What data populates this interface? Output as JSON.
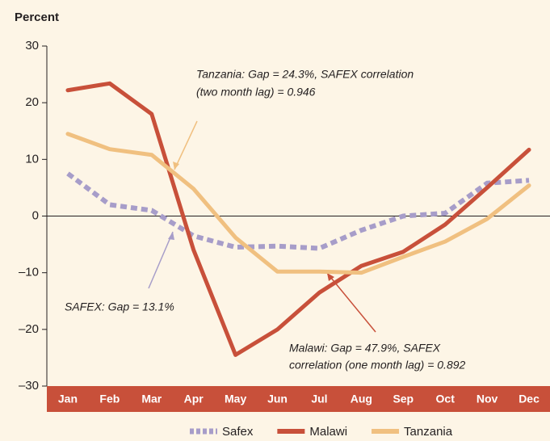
{
  "chart_data": {
    "type": "line",
    "y_axis_label": "Percent",
    "categories": [
      "Jan",
      "Feb",
      "Mar",
      "Apr",
      "May",
      "Jun",
      "Jul",
      "Aug",
      "Sep",
      "Oct",
      "Nov",
      "Dec"
    ],
    "series": [
      {
        "name": "Safex",
        "color": "#a79dc9",
        "dashed": true,
        "values": [
          7.5,
          2,
          1,
          -3.5,
          -5.5,
          -5.3,
          -5.7,
          -2.5,
          0,
          0.5,
          5.8,
          6.3
        ]
      },
      {
        "name": "Malawi",
        "color": "#c8503a",
        "values": [
          22.2,
          23.4,
          18,
          -6,
          -24.5,
          -20,
          -13.5,
          -8.8,
          -6.3,
          -1.5,
          5,
          11.7
        ]
      },
      {
        "name": "Tanzania",
        "color": "#f0c080",
        "values": [
          14.5,
          11.8,
          10.8,
          4.8,
          -3.8,
          -9.8,
          -9.8,
          -10,
          -7.2,
          -4.5,
          -0.5,
          5.4
        ]
      }
    ],
    "ylim": [
      -30,
      30
    ],
    "yticks": [
      {
        "value": -30,
        "label": "–30"
      },
      {
        "value": -20,
        "label": "–20"
      },
      {
        "value": -10,
        "label": "–10"
      },
      0,
      10,
      20,
      30
    ],
    "annotations": [
      {
        "lines": [
          "Tanzania: Gap = 24.3%, SAFEX correlation",
          "(two month lag) = 0.946"
        ]
      },
      {
        "lines": [
          "SAFEX: Gap = 13.1%"
        ]
      },
      {
        "lines": [
          "Malawi: Gap = 47.9%, SAFEX",
          "correlation (one month lag) = 0.892"
        ]
      }
    ],
    "band_color": "#c8503a"
  }
}
